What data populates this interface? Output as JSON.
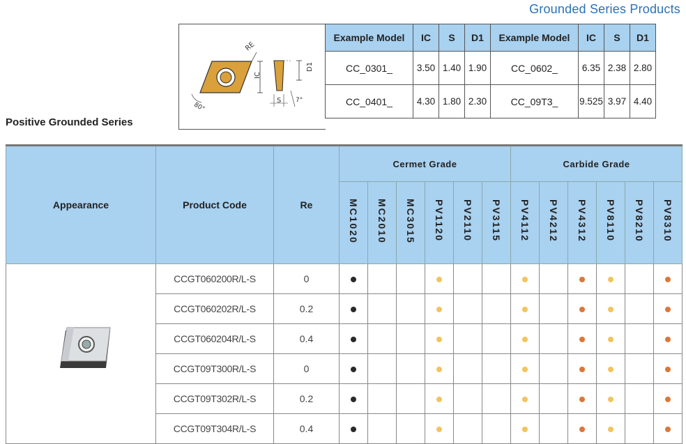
{
  "header": {
    "title": "Grounded Series Products"
  },
  "series": {
    "title": "Positive Grounded Series"
  },
  "diagram": {
    "re_label": "RE",
    "ic_label": "IC",
    "d1_label": "D1",
    "angle_label": "80°",
    "s_label": "S",
    "clearance_label": "7°"
  },
  "example_table": {
    "headers": [
      "Example Model",
      "IC",
      "S",
      "D1",
      "Example Model",
      "IC",
      "S",
      "D1"
    ],
    "rows": [
      [
        "CC_0301_",
        "3.50",
        "1.40",
        "1.90",
        "CC_0602_",
        "6.35",
        "2.38",
        "2.80"
      ],
      [
        "CC_0401_",
        "4.30",
        "1.80",
        "2.30",
        "CC_09T3_",
        "9.525",
        "3.97",
        "4.40"
      ]
    ]
  },
  "main_table": {
    "appearance_header": "Appearance",
    "code_header": "Product Code",
    "re_header": "Re",
    "cermet_header": "Cermet Grade",
    "carbide_header": "Carbide Grade",
    "grades": [
      "MC1020",
      "MC2010",
      "MC3015",
      "PV1120",
      "PV2110",
      "PV3115",
      "PV4112",
      "PV4212",
      "PV4312",
      "PV8110",
      "PV8210",
      "PV8310"
    ],
    "rows": [
      {
        "code": "CCGT060200R/L-S",
        "re": "0"
      },
      {
        "code": "CCGT060202R/L-S",
        "re": "0.2"
      },
      {
        "code": "CCGT060204R/L-S",
        "re": "0.4"
      },
      {
        "code": "CCGT09T300R/L-S",
        "re": "0"
      },
      {
        "code": "CCGT09T302R/L-S",
        "re": "0.2"
      },
      {
        "code": "CCGT09T304R/L-S",
        "re": "0.4"
      }
    ],
    "availability": [
      "black",
      "",
      "",
      "yellow",
      "",
      "",
      "yellow",
      "",
      "orange",
      "yellow",
      "",
      "orange"
    ],
    "colors": {
      "black": "#2a2a2a",
      "yellow": "#f2c45e",
      "orange": "#d9783a",
      "header_bg": "#a9d1f0"
    }
  }
}
